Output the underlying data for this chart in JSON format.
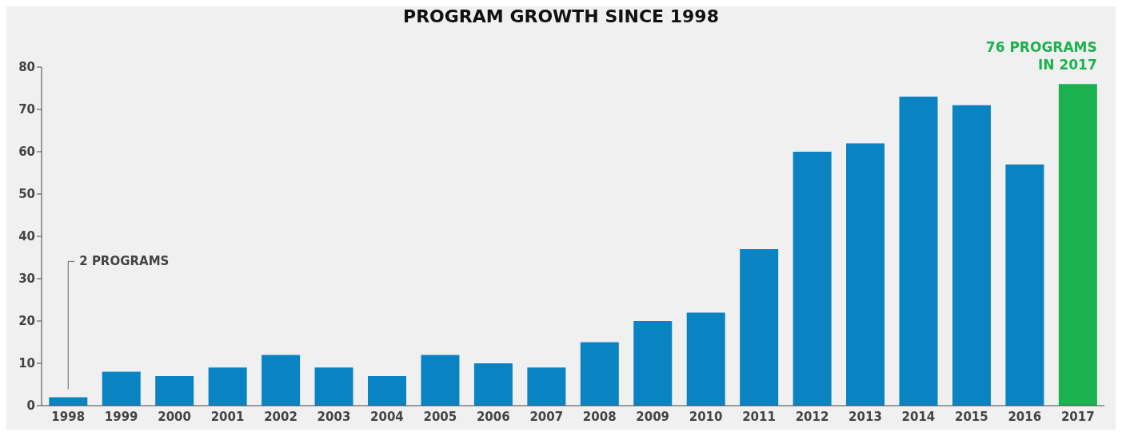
{
  "chart_data": {
    "type": "bar",
    "title": "PROGRAM GROWTH SINCE 1998",
    "categories": [
      "1998",
      "1999",
      "2000",
      "2001",
      "2002",
      "2003",
      "2004",
      "2005",
      "2006",
      "2007",
      "2008",
      "2009",
      "2010",
      "2011",
      "2012",
      "2013",
      "2014",
      "2015",
      "2016",
      "2017"
    ],
    "values": [
      2,
      8,
      7,
      9,
      12,
      9,
      7,
      12,
      10,
      9,
      15,
      20,
      22,
      37,
      60,
      62,
      73,
      71,
      57,
      76
    ],
    "colors": [
      "#0a83c3",
      "#0a83c3",
      "#0a83c3",
      "#0a83c3",
      "#0a83c3",
      "#0a83c3",
      "#0a83c3",
      "#0a83c3",
      "#0a83c3",
      "#0a83c3",
      "#0a83c3",
      "#0a83c3",
      "#0a83c3",
      "#0a83c3",
      "#0a83c3",
      "#0a83c3",
      "#0a83c3",
      "#0a83c3",
      "#0a83c3",
      "#1bb24f"
    ],
    "ylim": [
      0,
      80
    ],
    "yticks": [
      0,
      10,
      20,
      30,
      40,
      50,
      60,
      70,
      80
    ],
    "grid": false,
    "legend": false,
    "annotations": [
      "2 PROGRAMS",
      "76 PROGRAMS\nIN 2017"
    ]
  }
}
